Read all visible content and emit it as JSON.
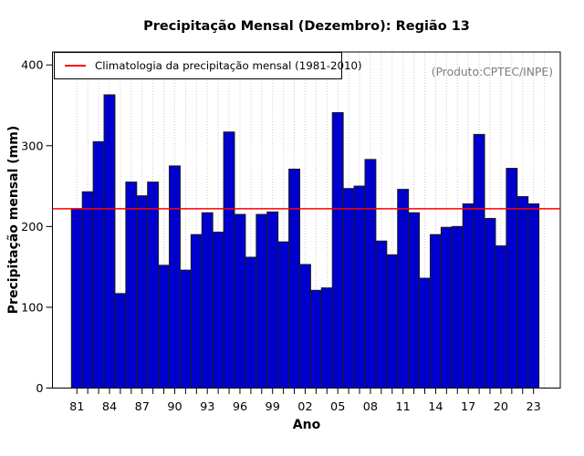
{
  "chart_data": {
    "type": "bar",
    "title": "Precipitação Mensal (Dezembro): Região 13",
    "xlabel": "Ano",
    "ylabel": "Precipitação mensal (mm)",
    "annotation": "(Produto:CPTEC/INPE)",
    "legend": {
      "label": "Climatologia da precipitação mensal (1981-2010)",
      "position": "top-left",
      "color": "#ff0000"
    },
    "climatology_value": 222,
    "ylim": [
      0,
      416
    ],
    "yticks": [
      0,
      100,
      200,
      300,
      400
    ],
    "x_tick_label_step": 3,
    "grid": "dotted-vertical",
    "years": [
      1981,
      1982,
      1983,
      1984,
      1985,
      1986,
      1987,
      1988,
      1989,
      1990,
      1991,
      1992,
      1993,
      1994,
      1995,
      1996,
      1997,
      1998,
      1999,
      2000,
      2001,
      2002,
      2003,
      2004,
      2005,
      2006,
      2007,
      2008,
      2009,
      2010,
      2011,
      2012,
      2013,
      2014,
      2015,
      2016,
      2017,
      2018,
      2019,
      2020,
      2021,
      2022,
      2023
    ],
    "values": [
      222,
      243,
      305,
      363,
      117,
      255,
      238,
      255,
      152,
      275,
      146,
      190,
      217,
      193,
      317,
      215,
      162,
      215,
      218,
      181,
      271,
      153,
      121,
      124,
      341,
      247,
      250,
      283,
      182,
      165,
      246,
      217,
      136,
      190,
      199,
      200,
      228,
      314,
      210,
      176,
      272,
      237,
      228
    ],
    "colors": {
      "bar_fill": "#0000CE",
      "bar_border": "#1c1c1c",
      "climatology_line": "#ff0000",
      "grid_line": "#cccccc",
      "axis": "#000000",
      "annotation_text": "#7d7d7d"
    }
  }
}
